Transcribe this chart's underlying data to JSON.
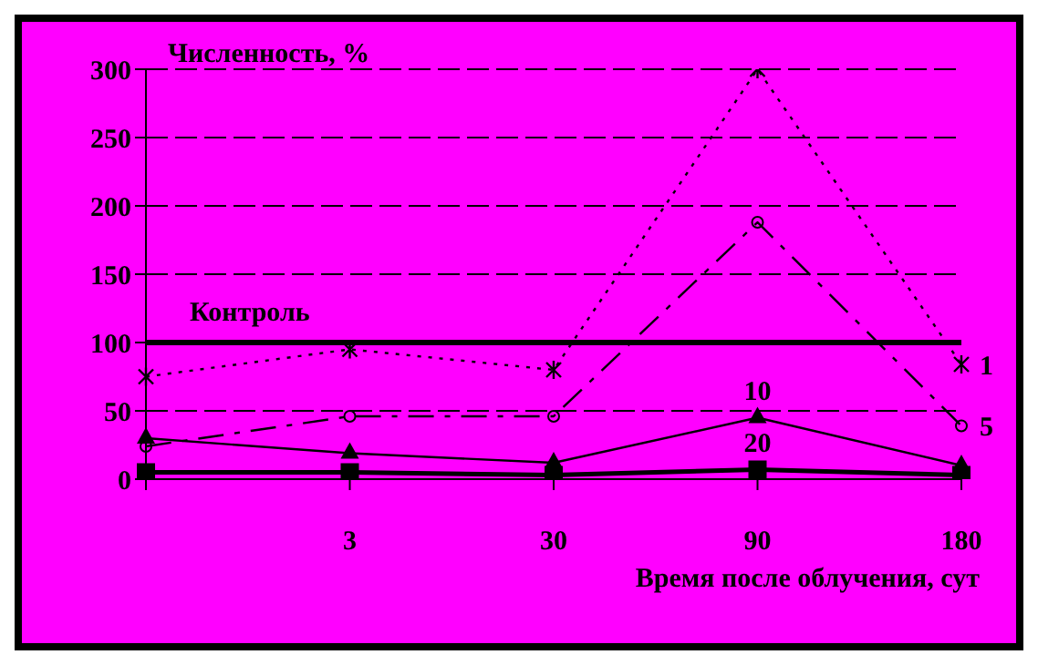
{
  "chart_data": {
    "type": "line",
    "ylabel": "Численность, %",
    "xlabel": "Время после облучения, сут",
    "categories": [
      null,
      "3",
      "30",
      "90",
      "180"
    ],
    "series": [
      {
        "color": "#000000",
        "values": [
          75,
          95,
          80,
          300,
          84
        ],
        "marker": "cross",
        "line_style": "dotted"
      },
      {
        "color": "#000000",
        "values": [
          24,
          46,
          46,
          188,
          39
        ],
        "marker": "circle",
        "line_style": "dashed"
      },
      {
        "color": "#000000",
        "values": [
          30,
          19,
          12,
          45,
          10
        ],
        "marker": "triangle",
        "line_style": "solid"
      },
      {
        "color": "#000000",
        "values": [
          5,
          5,
          3,
          7,
          3
        ],
        "marker": "square",
        "line_style": "solid"
      }
    ],
    "ylim": [
      0,
      300
    ],
    "yticks": [
      0,
      50,
      100,
      150,
      200,
      250,
      300
    ],
    "grid": "y",
    "legend": false,
    "ref_lines": [
      {
        "axis": "y",
        "value": 100,
        "label": "Контроль",
        "color": "#000000",
        "line_style": "solid"
      }
    ],
    "annotations": [
      {
        "text": "1",
        "x": "180",
        "y": 84
      },
      {
        "text": "5",
        "x": "180",
        "y": 39
      },
      {
        "text": "10",
        "x": "90",
        "y": 45
      },
      {
        "text": "20",
        "x": "90",
        "y": 7
      }
    ]
  }
}
